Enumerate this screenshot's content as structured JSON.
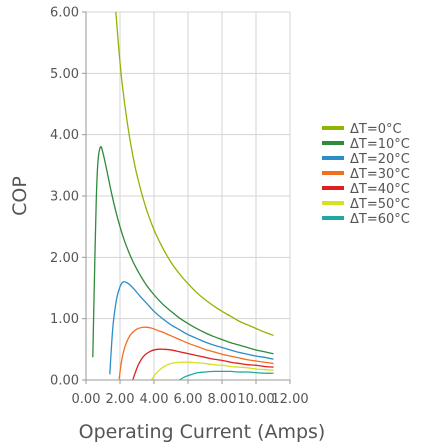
{
  "chart_data": {
    "type": "line",
    "xlabel": "Operating Current (Amps)",
    "ylabel": "COP",
    "xlim": [
      0,
      12
    ],
    "ylim": [
      0,
      6
    ],
    "xticks": [
      "0.00",
      "2.00",
      "4.00",
      "6.00",
      "8.00",
      "10.00",
      "12.00"
    ],
    "yticks": [
      "0.00",
      "1.00",
      "2.00",
      "3.00",
      "4.00",
      "5.00",
      "6.00"
    ],
    "grid": true,
    "legend_position": "right",
    "series": [
      {
        "name": "ΔT=0°C",
        "color": "#8db600",
        "x": [
          1.7,
          1.9,
          2.1,
          2.4,
          2.7,
          3.0,
          3.5,
          4.0,
          4.5,
          5.0,
          5.5,
          6.0,
          6.5,
          7.0,
          7.5,
          8.0,
          8.5,
          9.0,
          9.5,
          10.0,
          10.5,
          11.0
        ],
        "y": [
          6.2,
          5.5,
          4.9,
          4.25,
          3.74,
          3.34,
          2.83,
          2.45,
          2.16,
          1.92,
          1.73,
          1.57,
          1.43,
          1.31,
          1.21,
          1.12,
          1.04,
          0.96,
          0.9,
          0.84,
          0.78,
          0.73
        ]
      },
      {
        "name": "ΔT=10°C",
        "color": "#2e8b3a",
        "x": [
          0.4,
          0.5,
          0.6,
          0.7,
          0.85,
          1.0,
          1.2,
          1.5,
          1.8,
          2.2,
          2.6,
          3.0,
          3.5,
          4.0,
          4.5,
          5.0,
          5.5,
          6.0,
          6.5,
          7.0,
          7.5,
          8.0,
          8.5,
          9.0,
          9.5,
          10.0,
          10.5,
          11.0
        ],
        "y": [
          0.38,
          1.7,
          2.9,
          3.55,
          3.8,
          3.7,
          3.45,
          3.05,
          2.7,
          2.32,
          2.03,
          1.8,
          1.57,
          1.39,
          1.24,
          1.12,
          1.01,
          0.92,
          0.84,
          0.77,
          0.71,
          0.66,
          0.61,
          0.57,
          0.53,
          0.49,
          0.46,
          0.43
        ]
      },
      {
        "name": "ΔT=20°C",
        "color": "#2a8fc8",
        "x": [
          1.4,
          1.5,
          1.6,
          1.8,
          2.0,
          2.2,
          2.5,
          2.8,
          3.2,
          3.6,
          4.0,
          4.5,
          5.0,
          5.5,
          6.0,
          6.5,
          7.0,
          7.5,
          8.0,
          8.5,
          9.0,
          9.5,
          10.0,
          10.5,
          11.0
        ],
        "y": [
          0.1,
          0.55,
          0.92,
          1.32,
          1.52,
          1.6,
          1.57,
          1.49,
          1.36,
          1.24,
          1.12,
          1.0,
          0.9,
          0.82,
          0.74,
          0.68,
          0.62,
          0.57,
          0.53,
          0.49,
          0.45,
          0.42,
          0.39,
          0.37,
          0.34
        ]
      },
      {
        "name": "ΔT=30°C",
        "color": "#f07020",
        "x": [
          1.95,
          2.1,
          2.3,
          2.6,
          3.0,
          3.4,
          3.8,
          4.2,
          4.6,
          5.0,
          5.5,
          6.0,
          6.5,
          7.0,
          7.5,
          8.0,
          8.5,
          9.0,
          9.5,
          10.0,
          10.5,
          11.0
        ],
        "y": [
          0.02,
          0.32,
          0.55,
          0.73,
          0.83,
          0.86,
          0.85,
          0.81,
          0.77,
          0.72,
          0.66,
          0.6,
          0.55,
          0.5,
          0.46,
          0.42,
          0.39,
          0.36,
          0.33,
          0.31,
          0.29,
          0.27
        ]
      },
      {
        "name": "ΔT=40°C",
        "color": "#e02020",
        "x": [
          2.75,
          2.9,
          3.1,
          3.4,
          3.8,
          4.2,
          4.6,
          5.0,
          5.5,
          6.0,
          6.5,
          7.0,
          7.5,
          8.0,
          8.5,
          9.0,
          9.5,
          10.0,
          10.5,
          11.0
        ],
        "y": [
          0.0,
          0.12,
          0.26,
          0.39,
          0.47,
          0.5,
          0.5,
          0.49,
          0.46,
          0.43,
          0.4,
          0.37,
          0.34,
          0.32,
          0.29,
          0.27,
          0.25,
          0.24,
          0.22,
          0.21
        ]
      },
      {
        "name": "ΔT=50°C",
        "color": "#d8e020",
        "x": [
          3.85,
          4.1,
          4.4,
          4.8,
          5.2,
          5.6,
          6.0,
          6.5,
          7.0,
          7.5,
          8.0,
          8.5,
          9.0,
          9.5,
          10.0,
          10.5,
          11.0
        ],
        "y": [
          0.0,
          0.1,
          0.18,
          0.25,
          0.28,
          0.29,
          0.29,
          0.28,
          0.27,
          0.25,
          0.24,
          0.22,
          0.21,
          0.2,
          0.18,
          0.17,
          0.16
        ]
      },
      {
        "name": "ΔT=60°C",
        "color": "#20a8a0",
        "x": [
          5.5,
          5.8,
          6.2,
          6.6,
          7.0,
          7.5,
          8.0,
          8.5,
          9.0,
          9.5,
          10.0,
          10.5,
          11.0
        ],
        "y": [
          0.0,
          0.05,
          0.09,
          0.12,
          0.13,
          0.14,
          0.14,
          0.14,
          0.13,
          0.13,
          0.12,
          0.11,
          0.11
        ]
      }
    ]
  }
}
